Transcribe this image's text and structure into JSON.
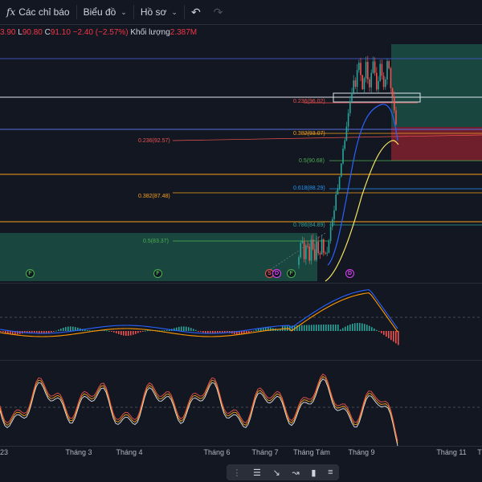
{
  "toolbar": {
    "fx_icon": "fx",
    "indicators_label": "Các chỉ báo",
    "chart_label": "Biểu đồ",
    "profile_label": "Hồ sơ",
    "undo_icon": "↶",
    "redo_icon": "↷"
  },
  "legend": {
    "o_value": "3.90",
    "l_label": "L",
    "l_value": "90.80",
    "c_label": "C",
    "c_value": "91.10",
    "change": "−2.40 (−2.57%)",
    "volume_label": "Khối lượng",
    "volume_value": "2.387M"
  },
  "fib_labels": {
    "f1": "0.236(96.02)",
    "f2": "0.382(93.07)",
    "f3": "0.236(92.57)",
    "f4": "0.5(90.68)",
    "f5": "0.618(88.29)",
    "f6": "0.382(87.48)",
    "f7": "0.786(84.89)",
    "f8": "0.5(83.37)"
  },
  "events": [
    "F",
    "F",
    "F",
    "S",
    "D",
    "F",
    "D"
  ],
  "time_axis": [
    "23",
    "Tháng 3",
    "Tháng 4",
    "Tháng 6",
    "Tháng 7",
    "Tháng Tám",
    "Tháng 9",
    "Tháng 11",
    "T"
  ],
  "colors": {
    "background": "#131722",
    "up": "#26a69a",
    "down": "#ef5350",
    "fib_orange": "#f7a21b",
    "long_zone": "#1b4d44",
    "short_zone": "#7a1f2d"
  }
}
